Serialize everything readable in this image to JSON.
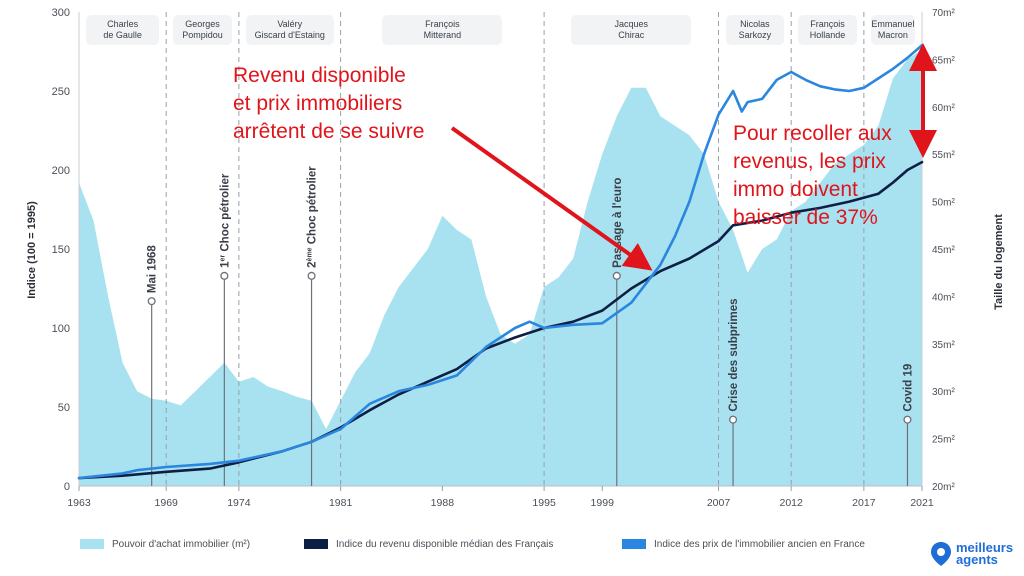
{
  "chart_data": {
    "type": "line",
    "left_axis": {
      "label": "Indice (100 = 1995)",
      "min": 0,
      "max": 300,
      "ticks": [
        0,
        50,
        100,
        150,
        200,
        250,
        300
      ]
    },
    "right_axis": {
      "label": "Taille du logement",
      "min": 20,
      "max": 70,
      "ticks": [
        "20m²",
        "25m²",
        "30m²",
        "35m²",
        "40m²",
        "45m²",
        "50m²",
        "55m²",
        "60m²",
        "65m²",
        "70m²"
      ]
    },
    "x_ticks": [
      1963,
      1969,
      1974,
      1981,
      1988,
      1995,
      1999,
      2007,
      2012,
      2017,
      2021
    ],
    "x_range": [
      1963,
      2021
    ],
    "presidents": [
      {
        "lines": [
          "Charles",
          "de Gaulle"
        ],
        "start": 1963,
        "end": 1969
      },
      {
        "lines": [
          "Georges",
          "Pompidou"
        ],
        "start": 1969,
        "end": 1974
      },
      {
        "lines": [
          "Valéry",
          "Giscard d'Estaing"
        ],
        "start": 1974,
        "end": 1981
      },
      {
        "lines": [
          "François",
          "Mitterand"
        ],
        "start": 1981,
        "end": 1995
      },
      {
        "lines": [
          "Jacques",
          "Chirac"
        ],
        "start": 1995,
        "end": 2007
      },
      {
        "lines": [
          "Nicolas",
          "Sarkozy"
        ],
        "start": 2007,
        "end": 2012
      },
      {
        "lines": [
          "François",
          "Hollande"
        ],
        "start": 2012,
        "end": 2017
      },
      {
        "lines": [
          "Emmanuel",
          "Macron"
        ],
        "start": 2017,
        "end": 2021
      }
    ],
    "series": [
      {
        "name": "Pouvoir d'achat immobilier (m²)",
        "axis": "right",
        "kind": "area",
        "color": "#a8e2f0",
        "x": [
          1963,
          1964,
          1965,
          1966,
          1967,
          1968,
          1969,
          1970,
          1971,
          1972,
          1973,
          1974,
          1975,
          1976,
          1977,
          1978,
          1979,
          1980,
          1981,
          1982,
          1983,
          1984,
          1985,
          1986,
          1987,
          1988,
          1989,
          1990,
          1991,
          1992,
          1993,
          1994,
          1995,
          1996,
          1997,
          1998,
          1999,
          2000,
          2001,
          2002,
          2003,
          2004,
          2005,
          2006,
          2007,
          2008,
          2009,
          2010,
          2011,
          2012,
          2013,
          2014,
          2015,
          2016,
          2017,
          2018,
          2019,
          2020,
          2021
        ],
        "y": [
          52,
          48,
          40,
          33,
          30,
          29.2,
          29,
          28.5,
          30,
          31.5,
          33,
          31,
          31.5,
          30.5,
          30,
          29.4,
          29,
          26,
          29,
          32,
          34,
          38,
          41,
          43,
          45,
          48.5,
          47,
          46,
          40,
          36,
          35,
          36,
          41,
          42,
          44,
          50,
          55,
          59,
          62,
          62,
          59,
          58,
          57,
          55,
          50,
          47,
          42.5,
          45,
          46,
          49,
          50,
          52,
          54,
          55,
          56,
          58,
          63,
          65,
          66
        ]
      },
      {
        "name": "Indice du revenu disponible médian des Français",
        "axis": "left",
        "kind": "line",
        "color": "#0e1f45",
        "x": [
          1963,
          1966,
          1969,
          1972,
          1974,
          1977,
          1979,
          1981,
          1983,
          1985,
          1987,
          1989,
          1991,
          1993,
          1995,
          1997,
          1999,
          2001,
          2003,
          2005,
          2007,
          2008,
          2010,
          2012,
          2014,
          2016,
          2018,
          2019,
          2020,
          2021
        ],
        "y": [
          5,
          6.5,
          9,
          11,
          15,
          22,
          28,
          37,
          48,
          58,
          66,
          74,
          87,
          94,
          100,
          104,
          111,
          125,
          136,
          144,
          155,
          165,
          168,
          173,
          176,
          180,
          185,
          192,
          200,
          205
        ]
      },
      {
        "name": "Indice des prix de l'immobilier ancien en France",
        "axis": "left",
        "kind": "line",
        "color": "#2a86de",
        "x": [
          1963,
          1966,
          1967,
          1969,
          1972,
          1974,
          1977,
          1979,
          1981,
          1983,
          1985,
          1987,
          1989,
          1991,
          1993,
          1994,
          1995,
          1997,
          1999,
          2001,
          2003,
          2004,
          2005,
          2006,
          2007,
          2008,
          2008.6,
          2009,
          2010,
          2011,
          2012,
          2013,
          2014,
          2015,
          2016,
          2017,
          2018,
          2019,
          2020,
          2021
        ],
        "y": [
          5,
          8,
          10,
          12,
          14,
          16,
          22,
          28,
          36,
          52,
          60,
          64,
          70,
          88,
          100,
          104,
          100,
          102,
          103,
          116,
          140,
          158,
          180,
          210,
          235,
          250,
          237,
          243,
          245,
          257,
          262,
          257,
          253,
          251,
          250,
          252,
          258,
          264,
          271,
          279
        ]
      }
    ],
    "event_markers": [
      {
        "label": "Mai 1968",
        "x": 1968,
        "top_value": 117
      },
      {
        "label": "Choc pétrolier",
        "prefix": "1",
        "sup": "er",
        "x": 1973,
        "top_value": 133
      },
      {
        "label": "Choc pétrolier",
        "prefix": "2",
        "sup": "ème",
        "x": 1979,
        "top_value": 133
      },
      {
        "label": "Passage à l'euro",
        "x": 2000,
        "top_value": 133
      },
      {
        "label": "Crise des subprimes",
        "x": 2008,
        "top_value": 42
      },
      {
        "label": "Covid 19",
        "x": 2020,
        "top_value": 42
      }
    ],
    "legend_placement": "bottom"
  },
  "annotations": {
    "text_1": [
      "Revenu disponible",
      "et prix immobiliers",
      "arrêtent de se suivre"
    ],
    "text_2": [
      "Pour recoller aux",
      "revenus, les prix",
      "immo doivent",
      "baisser de 37%"
    ],
    "color": "#e0141b"
  },
  "legend": [
    {
      "label": "Pouvoir d'achat immobilier (m²)",
      "color": "#a8e2f0"
    },
    {
      "label": "Indice du revenu disponible médian des Français",
      "color": "#0e1f45"
    },
    {
      "label": "Indice des prix de l'immobilier ancien en France",
      "color": "#2a86de"
    }
  ],
  "logo": {
    "lines": [
      "meilleurs",
      "agents"
    ],
    "icon": "location-pin-icon",
    "color": "#1f6ed6"
  }
}
